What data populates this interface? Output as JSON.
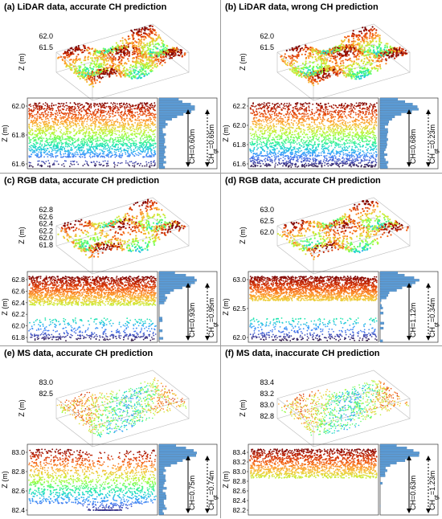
{
  "colors": {
    "turbo_stops": [
      "#30123b",
      "#4145ab",
      "#4675ed",
      "#39a2fc",
      "#1bcfd4",
      "#24eca6",
      "#61fc6c",
      "#a4fc3b",
      "#d1e834",
      "#f3c63a",
      "#fe9b2d",
      "#f36315",
      "#d93806",
      "#b11901",
      "#7a0403"
    ],
    "histogram_fill": "#5b9bd5",
    "histogram_stroke": "#3a6ea0"
  },
  "panels": [
    {
      "title": "(a) LiDAR data, accurate CH prediction",
      "top": {
        "zlabel": "Z (m)",
        "zticks": [
          "62.0",
          "61.5"
        ]
      },
      "bottom": {
        "ylabel": "Z (m)",
        "yticks": [
          "62.0",
          "61.8",
          "61.6"
        ],
        "ch_label": "CH=0.60m",
        "chgt_label": "CH",
        "chgt_sub": "gt",
        "chgt_value": "=0.65m"
      }
    },
    {
      "title": "(b) LiDAR data, wrong CH prediction",
      "top": {
        "zlabel": "Z (m)",
        "zticks": [
          "62.0",
          "61.5"
        ]
      },
      "bottom": {
        "ylabel": "Z (m)",
        "yticks": [
          "62.2",
          "62.0",
          "61.8",
          "61.6"
        ],
        "ch_label": "CH=0.68m",
        "chgt_label": "CH",
        "chgt_sub": "gt",
        "chgt_value": "=0.23m"
      }
    },
    {
      "title": "(c) RGB data, accurate CH prediction",
      "top": {
        "zlabel": "Z (m)",
        "zticks": [
          "62.8",
          "62.6",
          "62.4",
          "62.2",
          "62.0",
          "61.8"
        ]
      },
      "bottom": {
        "ylabel": "Z (m)",
        "yticks": [
          "62.8",
          "62.6",
          "62.4",
          "62.2",
          "62.0",
          "61.8"
        ],
        "ch_label": "CH=0.93m",
        "chgt_label": "CH",
        "chgt_sub": "gt",
        "chgt_value": "=0.95m"
      }
    },
    {
      "title": "(d) RGB data, accurate CH prediction",
      "top": {
        "zlabel": "Z (m)",
        "zticks": [
          "63.0",
          "62.5",
          "62.0"
        ]
      },
      "bottom": {
        "ylabel": "Z (m)",
        "yticks": [
          "63.0",
          "62.5",
          "62.0"
        ],
        "ch_label": "CH=1.12m",
        "chgt_label": "CH",
        "chgt_sub": "gt",
        "chgt_value": "=0.34m"
      }
    },
    {
      "title": "(e) MS data, accurate CH prediction",
      "top": {
        "zlabel": "Z (m)",
        "zticks": [
          "83.0",
          "82.5"
        ]
      },
      "bottom": {
        "ylabel": "Z (m)",
        "yticks": [
          "83.0",
          "82.8",
          "82.6",
          "82.4"
        ],
        "ch_label": "CH=0.75m",
        "chgt_label": "CH",
        "chgt_sub": "gt",
        "chgt_value": "=0.74m"
      }
    },
    {
      "title": "(f) MS data, inaccurate CH prediction",
      "top": {
        "zlabel": "Z (m)",
        "zticks": [
          "83.4",
          "83.2",
          "83.0",
          "82.8"
        ]
      },
      "bottom": {
        "ylabel": "Z (m)",
        "yticks": [
          "83.4",
          "83.2",
          "83.0",
          "82.8",
          "82.6",
          "82.4",
          "82.2"
        ],
        "ch_label": "CH=0.63m",
        "chgt_label": "CH",
        "chgt_sub": "gt",
        "chgt_value": "=1.23m"
      }
    }
  ]
}
